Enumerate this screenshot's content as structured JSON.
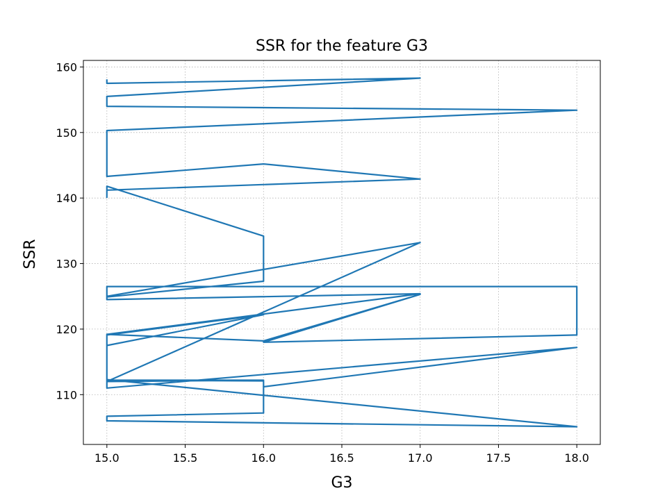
{
  "chart_data": {
    "type": "line",
    "title": "SSR for the feature G3",
    "xlabel": "G3",
    "ylabel": "SSR",
    "xlim": [
      14.85,
      18.15
    ],
    "ylim": [
      102.4,
      161.0
    ],
    "x_ticks": [
      15.0,
      15.5,
      16.0,
      16.5,
      17.0,
      17.5,
      18.0
    ],
    "x_tick_labels": [
      "15.0",
      "15.5",
      "16.0",
      "16.5",
      "17.0",
      "17.5",
      "18.0"
    ],
    "y_ticks": [
      110,
      120,
      130,
      140,
      150,
      160
    ],
    "y_tick_labels": [
      "110",
      "120",
      "130",
      "140",
      "150",
      "160"
    ],
    "grid": true,
    "grid_style": "dotted",
    "legend": false,
    "series": [
      {
        "color": "#1f77b4",
        "x": [
          15,
          15,
          17,
          15,
          15,
          18,
          15,
          15,
          15,
          16,
          17,
          15,
          15,
          15,
          16,
          16,
          15,
          15,
          15,
          17,
          15,
          15,
          16,
          15,
          15,
          15,
          16,
          15,
          17,
          15,
          15,
          15,
          18,
          18,
          18,
          16,
          17,
          16,
          15,
          15,
          15,
          16,
          16,
          15,
          15,
          18,
          15,
          15,
          18,
          16
        ],
        "y": [
          158.0,
          157.5,
          158.3,
          155.5,
          154.0,
          153.4,
          150.3,
          150.0,
          143.3,
          145.2,
          142.9,
          141.2,
          140.1,
          141.8,
          134.2,
          127.3,
          124.9,
          126.5,
          124.5,
          125.4,
          119.2,
          117.5,
          122.2,
          119.1,
          116.3,
          112.2,
          112.2,
          112.0,
          133.2,
          125.0,
          124.7,
          126.5,
          126.5,
          122.6,
          119.1,
          118.0,
          125.3,
          118.2,
          119.2,
          116.3,
          112.2,
          112.1,
          107.2,
          106.7,
          106.0,
          105.1,
          112.3,
          111.0,
          117.2,
          111.2
        ]
      }
    ]
  }
}
